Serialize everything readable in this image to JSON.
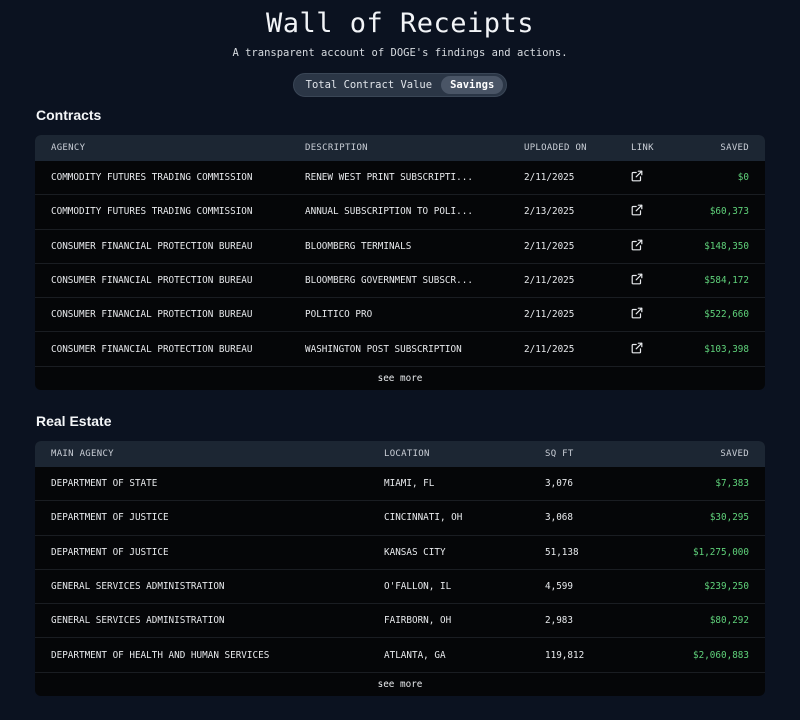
{
  "header": {
    "title": "Wall of Receipts",
    "subtitle": "A transparent account of DOGE's findings and actions."
  },
  "toggle": {
    "options": [
      "Total Contract Value",
      "Savings"
    ],
    "selected": "Savings"
  },
  "contracts": {
    "title": "Contracts",
    "columns": [
      "AGENCY",
      "DESCRIPTION",
      "UPLOADED ON",
      "LINK",
      "SAVED"
    ],
    "rows": [
      {
        "agency": "COMMODITY FUTURES TRADING COMMISSION",
        "description": "RENEW WEST PRINT SUBSCRIPTI...",
        "uploaded": "2/11/2025",
        "saved": "$0"
      },
      {
        "agency": "COMMODITY FUTURES TRADING COMMISSION",
        "description": "ANNUAL SUBSCRIPTION TO POLI...",
        "uploaded": "2/13/2025",
        "saved": "$60,373"
      },
      {
        "agency": "CONSUMER FINANCIAL PROTECTION BUREAU",
        "description": "BLOOMBERG TERMINALS",
        "uploaded": "2/11/2025",
        "saved": "$148,350"
      },
      {
        "agency": "CONSUMER FINANCIAL PROTECTION BUREAU",
        "description": "BLOOMBERG GOVERNMENT SUBSCR...",
        "uploaded": "2/11/2025",
        "saved": "$584,172"
      },
      {
        "agency": "CONSUMER FINANCIAL PROTECTION BUREAU",
        "description": "POLITICO PRO",
        "uploaded": "2/11/2025",
        "saved": "$522,660"
      },
      {
        "agency": "CONSUMER FINANCIAL PROTECTION BUREAU",
        "description": "WASHINGTON POST SUBSCRIPTION",
        "uploaded": "2/11/2025",
        "saved": "$103,398"
      }
    ],
    "see_more": "see more",
    "link_icon": "external-link-icon"
  },
  "real_estate": {
    "title": "Real Estate",
    "columns": [
      "MAIN AGENCY",
      "LOCATION",
      "SQ FT",
      "SAVED"
    ],
    "rows": [
      {
        "agency": "DEPARTMENT OF STATE",
        "location": "MIAMI, FL",
        "sqft": "3,076",
        "saved": "$7,383"
      },
      {
        "agency": "DEPARTMENT OF JUSTICE",
        "location": "CINCINNATI, OH",
        "sqft": "3,068",
        "saved": "$30,295"
      },
      {
        "agency": "DEPARTMENT OF JUSTICE",
        "location": "KANSAS CITY",
        "sqft": "51,138",
        "saved": "$1,275,000"
      },
      {
        "agency": "GENERAL SERVICES ADMINISTRATION",
        "location": "O'FALLON, IL",
        "sqft": "4,599",
        "saved": "$239,250"
      },
      {
        "agency": "GENERAL SERVICES ADMINISTRATION",
        "location": "FAIRBORN, OH",
        "sqft": "2,983",
        "saved": "$80,292"
      },
      {
        "agency": "DEPARTMENT OF HEALTH AND HUMAN SERVICES",
        "location": "ATLANTA, GA",
        "sqft": "119,812",
        "saved": "$2,060,883"
      }
    ],
    "see_more": "see more"
  },
  "colors": {
    "background": "#0b1220",
    "table_bg": "#050608",
    "header_bg": "#1c2633",
    "saved_green": "#5fd17a"
  }
}
